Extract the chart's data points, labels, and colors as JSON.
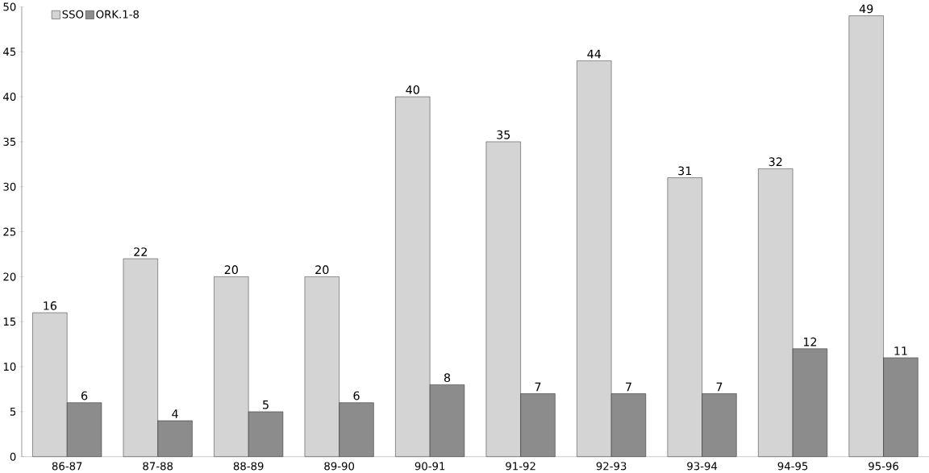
{
  "chart_data": {
    "type": "bar",
    "categories": [
      "86-87",
      "87-88",
      "88-89",
      "89-90",
      "90-91",
      "91-92",
      "92-93",
      "93-94",
      "94-95",
      "95-96"
    ],
    "series": [
      {
        "name": "SSO",
        "color": "#d4d4d4",
        "values": [
          16,
          22,
          20,
          20,
          40,
          35,
          44,
          31,
          32,
          49
        ]
      },
      {
        "name": "ORK.1-8",
        "color": "#8c8c8c",
        "values": [
          6,
          4,
          5,
          6,
          8,
          7,
          7,
          7,
          12,
          11
        ]
      }
    ],
    "ylim": [
      0,
      50
    ],
    "yticks": [
      0,
      5,
      10,
      15,
      20,
      25,
      30,
      35,
      40,
      45,
      50
    ],
    "data_labels": true,
    "grid": false,
    "legend": "top left"
  }
}
